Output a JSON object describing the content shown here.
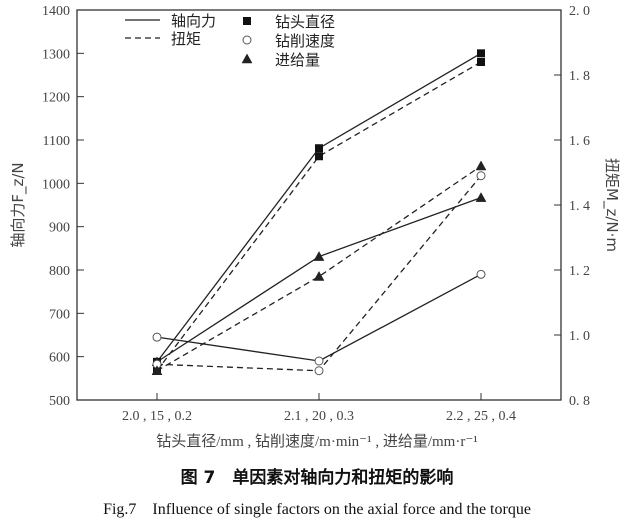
{
  "chart_data": {
    "type": "line",
    "categories": [
      "2.0 , 15 , 0.2",
      "2.1 , 20 , 0.3",
      "2.2 , 25 , 0.4"
    ],
    "xlabel": "钻头直径/mm , 钻削速度/m·min⁻¹ , 进给量/mm·r⁻¹",
    "ylabel_left": "轴向力F_z/N",
    "ylabel_right": "扭矩M_z/N·m",
    "ylim_left": [
      500,
      1400
    ],
    "yticks_left": [
      "500",
      "600",
      "700",
      "800",
      "900",
      "1000",
      "1100",
      "1200",
      "1300",
      "1400"
    ],
    "ylim_right": [
      0.8,
      2.0
    ],
    "yticks_right": [
      "0. 8",
      "1. 0",
      "1. 2",
      "1. 4",
      "1. 6",
      "1. 8",
      "2. 0"
    ],
    "legend_lines": [
      {
        "label": "轴向力",
        "style": "solid"
      },
      {
        "label": "扭矩",
        "style": "dashed"
      }
    ],
    "legend_markers": [
      {
        "label": "钻头直径",
        "marker": "square-filled"
      },
      {
        "label": "钻削速度",
        "marker": "circle-open"
      },
      {
        "label": "进给量",
        "marker": "triangle"
      }
    ],
    "legend_placement": "top-left",
    "grid": false,
    "series": [
      {
        "quantity": "轴向力",
        "factor": "钻头直径",
        "axis": "left",
        "style": "solid",
        "marker": "square-filled",
        "values": [
          588,
          1081,
          1300
        ]
      },
      {
        "quantity": "轴向力",
        "factor": "钻削速度",
        "axis": "left",
        "style": "solid",
        "marker": "circle-open",
        "values": [
          645,
          590,
          790
        ]
      },
      {
        "quantity": "轴向力",
        "factor": "进给量",
        "axis": "left",
        "style": "solid",
        "marker": "triangle",
        "values": [
          588,
          831,
          967
        ]
      },
      {
        "quantity": "扭矩",
        "factor": "钻头直径",
        "axis": "right",
        "style": "dashed",
        "marker": "square-filled",
        "values": [
          0.89,
          1.55,
          1.84
        ]
      },
      {
        "quantity": "扭矩",
        "factor": "钻削速度",
        "axis": "right",
        "style": "dashed",
        "marker": "circle-open",
        "values": [
          0.91,
          0.89,
          1.49
        ]
      },
      {
        "quantity": "扭矩",
        "factor": "进给量",
        "axis": "right",
        "style": "dashed",
        "marker": "triangle",
        "values": [
          0.89,
          1.18,
          1.52
        ]
      }
    ]
  },
  "caption_cn": "图 7　单因素对轴向力和扭矩的影响",
  "caption_en": "Fig.7　Influence of single factors on the axial force and the torque"
}
